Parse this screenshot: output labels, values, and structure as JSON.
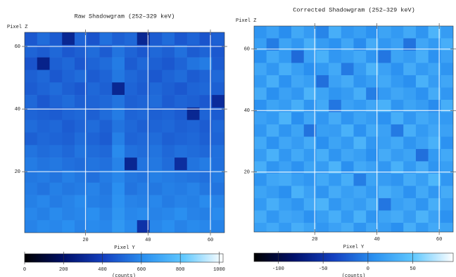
{
  "chart_data": [
    {
      "type": "heatmap",
      "title": "Raw Shadowgram (252–329 keV)",
      "xlabel": "Pixel Y",
      "ylabel": "Pixel Z",
      "x": [
        2.5,
        6.5,
        10.5,
        14.5,
        18.5,
        22.5,
        26.5,
        30.5,
        34.5,
        38.5,
        42.5,
        46.5,
        50.5,
        54.5,
        58.5,
        62.5
      ],
      "y": [
        62.5,
        58.5,
        54.5,
        50.5,
        46.5,
        42.5,
        38.5,
        34.5,
        30.5,
        26.5,
        22.5,
        18.5,
        14.5,
        10.5,
        6.5,
        2.5
      ],
      "values": [
        [
          470,
          520,
          480,
          300,
          500,
          460,
          530,
          490,
          510,
          300,
          480,
          520,
          470,
          500,
          460,
          490
        ],
        [
          500,
          480,
          510,
          470,
          490,
          520,
          480,
          540,
          500,
          470,
          510,
          490,
          530,
          480,
          500,
          470
        ],
        [
          460,
          280,
          490,
          510,
          470,
          500,
          520,
          560,
          480,
          510,
          490,
          470,
          500,
          540,
          560,
          480
        ],
        [
          490,
          510,
          470,
          500,
          520,
          480,
          500,
          550,
          510,
          490,
          470,
          500,
          520,
          480,
          500,
          510
        ],
        [
          480,
          500,
          520,
          490,
          470,
          510,
          490,
          300,
          500,
          480,
          510,
          490,
          470,
          500,
          510,
          490
        ],
        [
          510,
          470,
          500,
          520,
          490,
          500,
          510,
          540,
          490,
          500,
          520,
          480,
          500,
          490,
          470,
          320
        ],
        [
          500,
          490,
          480,
          500,
          510,
          490,
          520,
          560,
          500,
          510,
          490,
          500,
          480,
          300,
          500,
          480
        ],
        [
          520,
          500,
          510,
          480,
          500,
          520,
          490,
          540,
          510,
          490,
          500,
          510,
          490,
          500,
          480,
          510
        ],
        [
          490,
          510,
          500,
          490,
          520,
          500,
          480,
          570,
          500,
          510,
          520,
          490,
          500,
          510,
          490,
          500
        ],
        [
          540,
          520,
          530,
          510,
          540,
          520,
          510,
          600,
          530,
          520,
          540,
          510,
          530,
          520,
          510,
          530
        ],
        [
          560,
          540,
          550,
          530,
          520,
          540,
          530,
          580,
          300,
          540,
          550,
          520,
          330,
          540,
          560,
          530
        ],
        [
          550,
          560,
          540,
          570,
          550,
          530,
          560,
          590,
          550,
          540,
          570,
          560,
          550,
          540,
          530,
          560
        ],
        [
          560,
          540,
          570,
          550,
          560,
          580,
          550,
          610,
          540,
          560,
          550,
          570,
          560,
          580,
          550,
          540
        ],
        [
          570,
          590,
          560,
          580,
          600,
          570,
          560,
          620,
          580,
          570,
          590,
          560,
          580,
          570,
          600,
          580
        ],
        [
          590,
          570,
          600,
          580,
          590,
          610,
          580,
          630,
          590,
          600,
          580,
          590,
          610,
          580,
          570,
          600
        ],
        [
          580,
          600,
          590,
          610,
          580,
          600,
          590,
          640,
          600,
          350,
          590,
          610,
          580,
          600,
          590,
          580
        ]
      ],
      "xlim": [
        0.5,
        64.5
      ],
      "ylim": [
        0.5,
        64.5
      ],
      "xticks": [
        20,
        40,
        60
      ],
      "yticks": [
        20,
        40,
        60
      ],
      "grid": true,
      "colorbar": {
        "clim": [
          0,
          1020
        ],
        "ticks": [
          0,
          200,
          400,
          600,
          800,
          1000
        ],
        "label": "(counts)",
        "colors": [
          "#000000",
          "#00106a",
          "#1440c0",
          "#2a90f0",
          "#60c8ff",
          "#ffffff"
        ]
      }
    },
    {
      "type": "heatmap",
      "title": "Corrected Shadowgram (252–329 keV)",
      "xlabel": "Pixel Y",
      "ylabel": "Pixel Z",
      "x": [
        2.5,
        6.5,
        10.5,
        14.5,
        18.5,
        22.5,
        26.5,
        30.5,
        34.5,
        38.5,
        42.5,
        46.5,
        50.5,
        54.5,
        58.5,
        62.5
      ],
      "y": [
        65.5,
        61.5,
        57.5,
        53.5,
        49.5,
        45.5,
        41.5,
        37.5,
        33.5,
        29.5,
        25.5,
        21.5,
        17.5,
        13.5,
        9.5,
        5.5,
        1.5
      ],
      "values": [
        [
          10,
          20,
          5,
          25,
          15,
          0,
          30,
          12,
          18,
          8,
          22,
          14,
          26,
          10,
          35,
          16
        ],
        [
          18,
          -5,
          22,
          12,
          30,
          16,
          8,
          24,
          4,
          28,
          12,
          20,
          -10,
          24,
          14,
          30
        ],
        [
          6,
          26,
          14,
          -15,
          20,
          32,
          12,
          18,
          26,
          10,
          -8,
          22,
          16,
          30,
          8,
          20
        ],
        [
          24,
          12,
          30,
          18,
          6,
          14,
          26,
          -6,
          16,
          34,
          20,
          8,
          28,
          14,
          22,
          10
        ],
        [
          14,
          30,
          8,
          24,
          18,
          -12,
          20,
          28,
          10,
          18,
          26,
          14,
          6,
          32,
          16,
          24
        ],
        [
          28,
          6,
          20,
          12,
          34,
          22,
          10,
          16,
          30,
          -4,
          14,
          24,
          18,
          8,
          28,
          12
        ],
        [
          8,
          22,
          16,
          30,
          10,
          26,
          -8,
          20,
          14,
          24,
          32,
          10,
          22,
          16,
          4,
          30
        ],
        [
          20,
          14,
          34,
          6,
          24,
          12,
          28,
          10,
          22,
          16,
          8,
          30,
          12,
          26,
          18,
          14
        ],
        [
          12,
          28,
          10,
          22,
          -10,
          18,
          16,
          32,
          8,
          26,
          20,
          -6,
          30,
          14,
          24,
          20
        ],
        [
          26,
          8,
          24,
          16,
          28,
          6,
          22,
          14,
          34,
          12,
          18,
          26,
          10,
          20,
          32,
          8
        ],
        [
          16,
          32,
          12,
          26,
          14,
          30,
          10,
          24,
          18,
          6,
          28,
          16,
          22,
          -12,
          14,
          26
        ],
        [
          30,
          10,
          20,
          8,
          22,
          16,
          34,
          6,
          26,
          20,
          12,
          32,
          14,
          28,
          10,
          18
        ],
        [
          10,
          24,
          28,
          18,
          12,
          26,
          14,
          30,
          -4,
          22,
          16,
          10,
          28,
          18,
          36,
          12
        ],
        [
          22,
          16,
          6,
          32,
          20,
          10,
          28,
          18,
          24,
          14,
          30,
          22,
          8,
          26,
          12,
          28
        ],
        [
          14,
          30,
          18,
          10,
          26,
          34,
          12,
          22,
          16,
          28,
          -8,
          18,
          24,
          10,
          30,
          16
        ],
        [
          28,
          12,
          24,
          20,
          8,
          18,
          30,
          14,
          32,
          10,
          22,
          28,
          16,
          34,
          20,
          8
        ],
        [
          18,
          26,
          14,
          30,
          22,
          12,
          20,
          28,
          10,
          24,
          16,
          6,
          30,
          14,
          26,
          22
        ]
      ],
      "xlim": [
        0.5,
        64.5
      ],
      "ylim": [
        0.5,
        67.5
      ],
      "xticks": [
        20,
        40,
        60
      ],
      "yticks": [
        20,
        40,
        60
      ],
      "grid": true,
      "colorbar": {
        "clim": [
          -127,
          95
        ],
        "ticks": [
          -100,
          -50,
          0,
          50
        ],
        "label": "(counts)",
        "colors": [
          "#000000",
          "#00106a",
          "#1440c0",
          "#2a90f0",
          "#60c8ff",
          "#ffffff"
        ]
      }
    }
  ]
}
